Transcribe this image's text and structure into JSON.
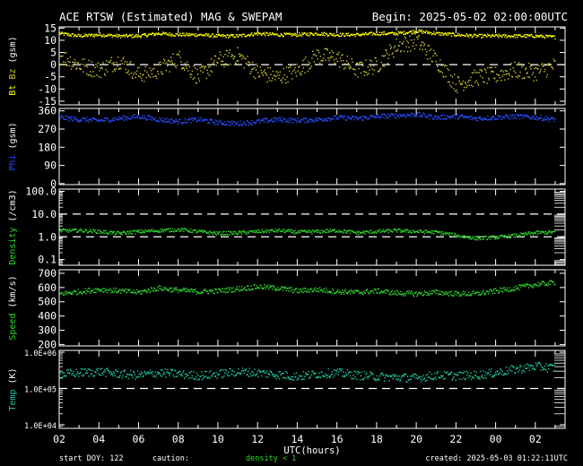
{
  "header": {
    "title": "ACE RTSW (Estimated) MAG & SWEPAM",
    "begin": "Begin: 2025-05-02 02:00:00UTC"
  },
  "footer": {
    "start_doy": "start DOY: 122",
    "caution": "caution:",
    "density_note": "density < 1",
    "created": "created: 2025-05-03 01:22:11UTC"
  },
  "colors": {
    "bt": "#ffff00",
    "bz": "#c8c832",
    "phi": "#2a4cff",
    "density": "#2ed82e",
    "speed": "#2ed82e",
    "temp": "#1fc8a0",
    "caution_note": "#2ed82e"
  },
  "chart_data": [
    {
      "type": "scatter",
      "ylabel": "Bt Bz (gsm)",
      "yticks": [
        "15",
        "10",
        "5",
        "0",
        "-5",
        "-10",
        "-15"
      ],
      "ylim": [
        -17,
        16
      ],
      "reference_lines": [
        0
      ],
      "series": [
        {
          "name": "Bt",
          "color": "#ffff00",
          "x": [
            0,
            1,
            2,
            3,
            4,
            5,
            6,
            7,
            8,
            9,
            10,
            11,
            12,
            13,
            14,
            15,
            16,
            17,
            18,
            19,
            20,
            21,
            22,
            23,
            24,
            25
          ],
          "values": [
            13,
            12,
            12.5,
            12,
            12,
            13,
            12.5,
            12.5,
            12,
            12,
            13,
            12.5,
            12.5,
            13,
            12.5,
            12.5,
            13,
            13,
            14,
            13,
            12.5,
            12,
            12,
            12,
            12,
            11.5
          ]
        },
        {
          "name": "Bz",
          "color": "#c8c832",
          "x": [
            0,
            1,
            2,
            3,
            4,
            5,
            6,
            7,
            8,
            9,
            10,
            11,
            12,
            13,
            14,
            15,
            16,
            17,
            18,
            19,
            20,
            21,
            22,
            23,
            24,
            25
          ],
          "values": [
            4,
            0,
            -2,
            2,
            -4,
            -2,
            3,
            -5,
            2,
            4,
            -3,
            -5,
            -2,
            4,
            3,
            -2,
            0,
            8,
            10,
            2,
            -8,
            -5,
            -4,
            -2,
            -3,
            0
          ]
        }
      ]
    },
    {
      "type": "scatter",
      "ylabel": "Phi (gsm)",
      "yticks": [
        "360",
        "270",
        "180",
        "90",
        "0"
      ],
      "ylim": [
        0,
        370
      ],
      "series": [
        {
          "name": "Phi",
          "color": "#2a4cff",
          "x": [
            0,
            1,
            2,
            3,
            4,
            5,
            6,
            7,
            8,
            9,
            10,
            11,
            12,
            13,
            14,
            15,
            16,
            17,
            18,
            19,
            20,
            21,
            22,
            23,
            24,
            25
          ],
          "values": [
            330,
            320,
            315,
            325,
            335,
            320,
            310,
            320,
            305,
            300,
            310,
            320,
            315,
            320,
            330,
            325,
            335,
            340,
            345,
            330,
            335,
            325,
            330,
            335,
            330,
            320
          ]
        }
      ]
    },
    {
      "type": "scatter",
      "ylabel": "Density (/cm3)",
      "yticks": [
        "100.0",
        "10.0",
        "1.0",
        "0.1"
      ],
      "ylim": [
        0.1,
        100
      ],
      "log": true,
      "reference_lines": [
        10,
        1
      ],
      "series": [
        {
          "name": "Density",
          "color": "#2ed82e",
          "x": [
            0,
            1,
            2,
            3,
            4,
            5,
            6,
            7,
            8,
            9,
            10,
            11,
            12,
            13,
            14,
            15,
            16,
            17,
            18,
            19,
            20,
            21,
            22,
            23,
            24,
            25
          ],
          "values": [
            2,
            2,
            1.8,
            1.5,
            1.8,
            2,
            2.2,
            1.8,
            1.5,
            1.6,
            1.8,
            2,
            1.7,
            1.8,
            2,
            1.6,
            1.8,
            2,
            1.8,
            1.7,
            1.2,
            0.9,
            1,
            1.2,
            1.6,
            1.7
          ]
        }
      ]
    },
    {
      "type": "scatter",
      "ylabel": "Speed (km/s)",
      "yticks": [
        "700",
        "600",
        "500",
        "400",
        "300",
        "200"
      ],
      "ylim": [
        200,
        720
      ],
      "series": [
        {
          "name": "Speed",
          "color": "#2ed82e",
          "x": [
            0,
            1,
            2,
            3,
            4,
            5,
            6,
            7,
            8,
            9,
            10,
            11,
            12,
            13,
            14,
            15,
            16,
            17,
            18,
            19,
            20,
            21,
            22,
            23,
            24,
            25
          ],
          "values": [
            560,
            575,
            590,
            580,
            570,
            600,
            585,
            575,
            580,
            595,
            610,
            600,
            580,
            590,
            575,
            570,
            580,
            565,
            560,
            570,
            560,
            560,
            580,
            600,
            625,
            640
          ]
        }
      ]
    },
    {
      "type": "scatter",
      "ylabel": "Temp (K)",
      "yticks": [
        "1.0E+06",
        "1.0E+05",
        "1.0E+04"
      ],
      "ylim": [
        10000,
        1000000
      ],
      "log": true,
      "reference_lines": [
        100000
      ],
      "series": [
        {
          "name": "Temp",
          "color": "#1fc8a0",
          "x": [
            0,
            1,
            2,
            3,
            4,
            5,
            6,
            7,
            8,
            9,
            10,
            11,
            12,
            13,
            14,
            15,
            16,
            17,
            18,
            19,
            20,
            21,
            22,
            23,
            24,
            25
          ],
          "values": [
            250000,
            280000,
            300000,
            260000,
            240000,
            280000,
            260000,
            230000,
            260000,
            300000,
            280000,
            250000,
            220000,
            260000,
            280000,
            240000,
            220000,
            210000,
            200000,
            240000,
            230000,
            240000,
            280000,
            350000,
            420000,
            380000
          ]
        }
      ]
    }
  ],
  "x_axis": {
    "label": "UTC(hours)",
    "tick_labels": [
      "02",
      "04",
      "06",
      "08",
      "10",
      "12",
      "14",
      "16",
      "18",
      "20",
      "22",
      "00",
      "02"
    ],
    "range": [
      0,
      25.5
    ]
  }
}
